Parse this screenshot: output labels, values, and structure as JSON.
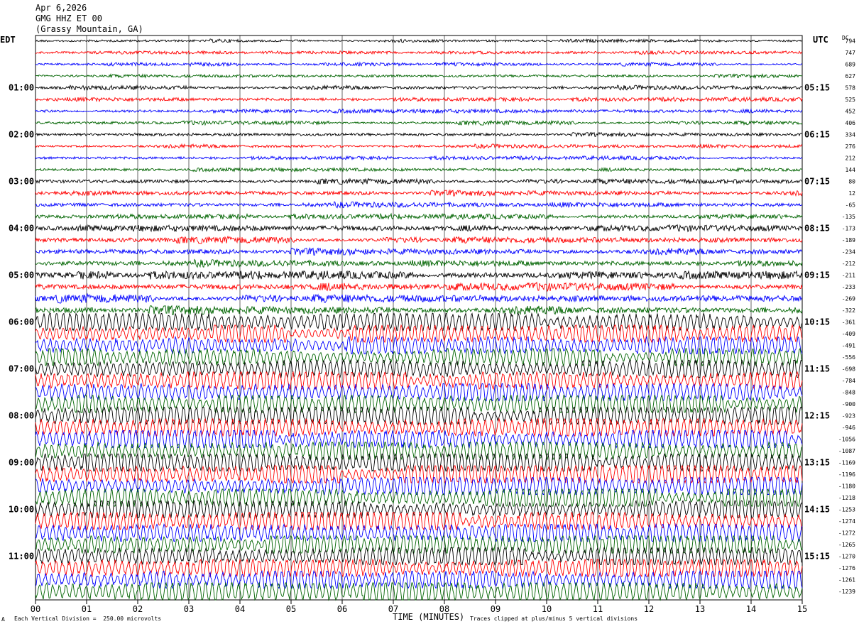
{
  "header": {
    "date": "Apr 6,2026",
    "station": "GMG HHZ ET 00",
    "location": "(Grassy Mountain, GA)"
  },
  "left_axis_title": "EDT",
  "right_axis_title": "UTC",
  "dc_title": "DC",
  "footer": {
    "scale_note": "Each Vertical Division =  250.00 microvolts",
    "clip_note": "Traces clipped at plus/minus 5 vertical divisions",
    "corner_mark": "A"
  },
  "colors": {
    "trace_cycle": [
      "#000000",
      "#ff0000",
      "#0000ff",
      "#006400"
    ],
    "grid": "#000000"
  },
  "chart_data": {
    "type": "line",
    "title": "",
    "xlabel": "TIME (MINUTES)",
    "ylabel": "",
    "x_ticks": [
      "00",
      "01",
      "02",
      "03",
      "04",
      "05",
      "06",
      "07",
      "08",
      "09",
      "10",
      "11",
      "12",
      "13",
      "14",
      "15"
    ],
    "xlim": [
      0,
      15
    ],
    "grid": "vertical lines each minute",
    "left_time_labels": [
      "01:00",
      "02:00",
      "03:00",
      "04:00",
      "05:00",
      "06:00",
      "07:00",
      "08:00",
      "09:00",
      "10:00",
      "11:00"
    ],
    "right_time_labels": [
      "05:15",
      "06:15",
      "07:15",
      "08:15",
      "09:15",
      "10:15",
      "11:15",
      "12:15",
      "13:15",
      "14:15",
      "15:15"
    ],
    "dc_offsets": [
      794,
      747,
      689,
      627,
      578,
      525,
      452,
      406,
      334,
      276,
      212,
      144,
      80,
      12,
      -65,
      -135,
      -173,
      -189,
      -234,
      -212,
      -211,
      -233,
      -269,
      -322,
      -361,
      -409,
      -491,
      -556,
      -698,
      -784,
      -848,
      -900,
      -923,
      -946,
      -1056,
      -1087,
      -1169,
      -1196,
      -1180,
      -1218,
      -1253,
      -1274,
      -1272,
      -1265,
      -1270,
      -1276,
      -1261,
      -1239
    ],
    "relative_amplitude_by_hour": [
      0.18,
      0.22,
      0.2,
      0.28,
      0.35,
      0.45,
      0.6,
      0.65,
      0.7,
      0.72,
      0.7,
      0.72
    ]
  }
}
